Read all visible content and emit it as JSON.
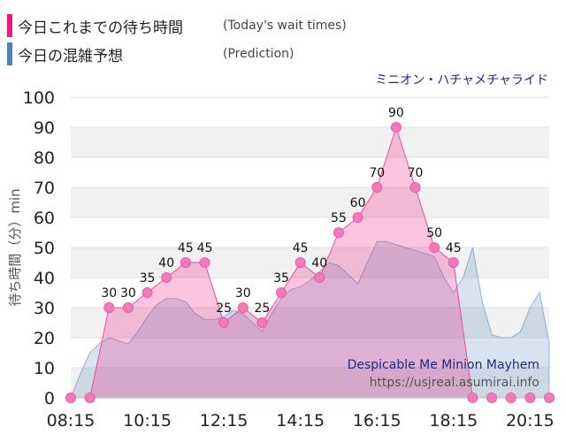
{
  "legend": {
    "actual_jp": "今日これまでの待ち時間",
    "actual_en": "(Today's wait times)",
    "prediction_jp": "今日の混雑予想",
    "prediction_en": "(Prediction)"
  },
  "colors": {
    "actual": "#f0187f",
    "prediction": "#4a84b8"
  },
  "attraction_jp": "ミニオン・ハチャメチャライド",
  "watermark": {
    "line1": "Despicable Me Minion Mayhem",
    "line2": "https://usjreal.asumirai.info"
  },
  "chart_data": {
    "type": "area",
    "ylabel": "待ち時間（分）min",
    "ylim": [
      0,
      100
    ],
    "yticks": [
      0,
      10,
      20,
      30,
      40,
      50,
      60,
      70,
      80,
      90,
      100
    ],
    "xticks": [
      "08:15",
      "10:15",
      "12:15",
      "14:15",
      "16:15",
      "18:15",
      "20:15"
    ],
    "series": [
      {
        "name": "Today's wait times",
        "x": [
          "08:15",
          "08:45",
          "09:15",
          "09:45",
          "10:15",
          "10:45",
          "11:15",
          "11:45",
          "12:15",
          "12:45",
          "13:15",
          "13:45",
          "14:15",
          "14:45",
          "15:15",
          "15:45",
          "16:15",
          "16:45",
          "17:15",
          "17:45",
          "18:15",
          "18:45",
          "19:15",
          "19:45",
          "20:15",
          "20:45"
        ],
        "values": [
          0,
          0,
          30,
          30,
          35,
          40,
          45,
          45,
          25,
          30,
          25,
          35,
          45,
          40,
          55,
          60,
          70,
          90,
          70,
          50,
          45,
          0,
          0,
          0,
          0,
          0
        ],
        "labeled_points": [
          2,
          3,
          4,
          5,
          6,
          7,
          8,
          9,
          10,
          11,
          12,
          13,
          14,
          15,
          16,
          17,
          18,
          19,
          20
        ]
      },
      {
        "name": "Prediction",
        "x": [
          "08:15",
          "08:30",
          "08:45",
          "09:00",
          "09:15",
          "09:30",
          "09:45",
          "10:00",
          "10:15",
          "10:30",
          "10:45",
          "11:00",
          "11:15",
          "11:30",
          "11:45",
          "12:00",
          "12:15",
          "12:30",
          "12:45",
          "13:00",
          "13:15",
          "13:30",
          "13:45",
          "14:00",
          "14:15",
          "14:30",
          "14:45",
          "15:00",
          "15:15",
          "15:30",
          "15:45",
          "16:00",
          "16:15",
          "16:30",
          "16:45",
          "17:00",
          "17:15",
          "17:30",
          "17:45",
          "18:00",
          "18:15",
          "18:30",
          "18:45",
          "19:00",
          "19:15",
          "19:30",
          "19:45",
          "20:00",
          "20:15",
          "20:30",
          "20:45"
        ],
        "values": [
          0,
          8,
          15,
          18,
          20,
          19,
          18,
          22,
          27,
          31,
          33,
          33,
          32,
          28,
          26,
          26,
          27,
          29,
          28,
          25,
          22,
          28,
          33,
          36,
          37,
          39,
          42,
          45,
          44,
          41,
          38,
          45,
          52,
          52,
          51,
          50,
          49,
          48,
          47,
          40,
          35,
          40,
          50,
          32,
          21,
          20,
          20,
          22,
          30,
          35,
          18
        ]
      }
    ]
  }
}
